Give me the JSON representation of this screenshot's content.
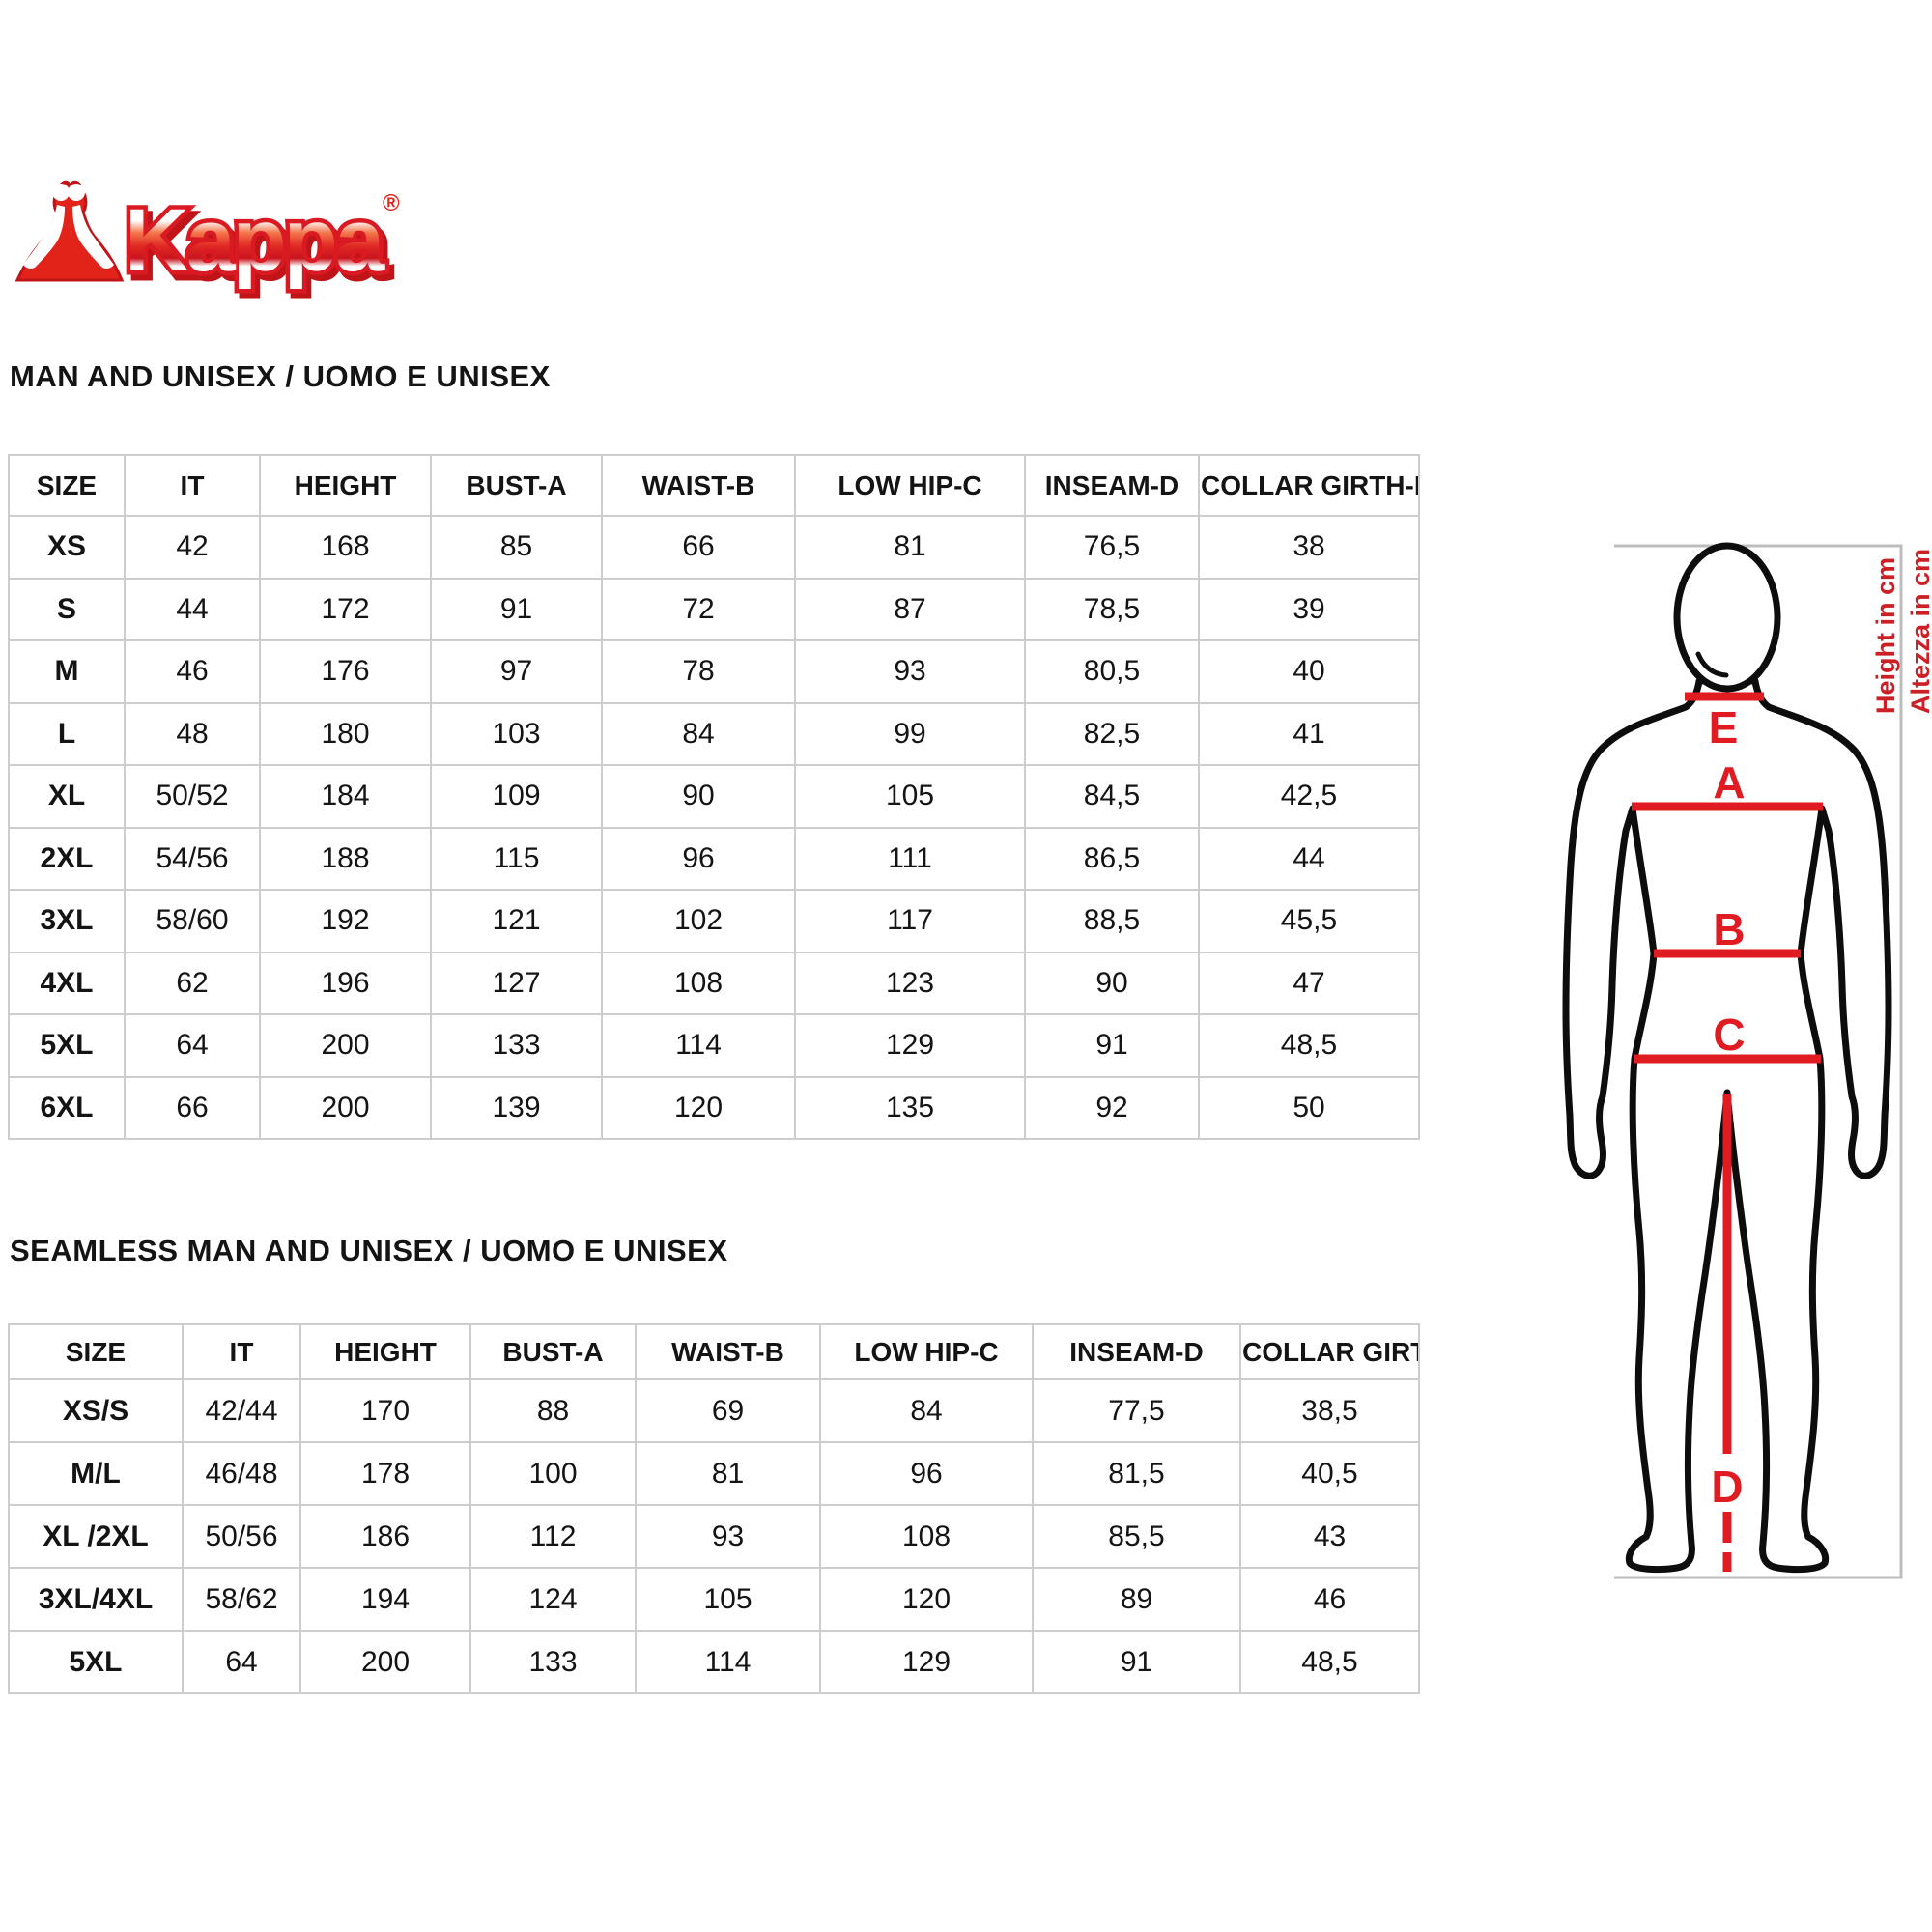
{
  "logo": {
    "brand": "Kappa",
    "registered": "®"
  },
  "colors": {
    "brand_red": "#e2231a",
    "line_red": "#e11b22",
    "note_red": "#cc1f26",
    "grid_gray": "#cdcdcd",
    "border_gray": "#bdbdbd",
    "text_black": "#141414"
  },
  "table1": {
    "title": "MAN AND UNISEX / UOMO E UNISEX",
    "columns": [
      "SIZE",
      "IT",
      "HEIGHT",
      "BUST-A",
      "WAIST-B",
      "LOW HIP-C",
      "INSEAM-D",
      "COLLAR GIRTH-E"
    ],
    "rows": [
      [
        "XS",
        "42",
        "168",
        "85",
        "66",
        "81",
        "76,5",
        "38"
      ],
      [
        "S",
        "44",
        "172",
        "91",
        "72",
        "87",
        "78,5",
        "39"
      ],
      [
        "M",
        "46",
        "176",
        "97",
        "78",
        "93",
        "80,5",
        "40"
      ],
      [
        "L",
        "48",
        "180",
        "103",
        "84",
        "99",
        "82,5",
        "41"
      ],
      [
        "XL",
        "50/52",
        "184",
        "109",
        "90",
        "105",
        "84,5",
        "42,5"
      ],
      [
        "2XL",
        "54/56",
        "188",
        "115",
        "96",
        "111",
        "86,5",
        "44"
      ],
      [
        "3XL",
        "58/60",
        "192",
        "121",
        "102",
        "117",
        "88,5",
        "45,5"
      ],
      [
        "4XL",
        "62",
        "196",
        "127",
        "108",
        "123",
        "90",
        "47"
      ],
      [
        "5XL",
        "64",
        "200",
        "133",
        "114",
        "129",
        "91",
        "48,5"
      ],
      [
        "6XL",
        "66",
        "200",
        "139",
        "120",
        "135",
        "92",
        "50"
      ]
    ]
  },
  "table2": {
    "title": "SEAMLESS MAN AND UNISEX / UOMO E UNISEX",
    "columns": [
      "SIZE",
      "IT",
      "HEIGHT",
      "BUST-A",
      "WAIST-B",
      "LOW HIP-C",
      "INSEAM-D",
      "COLLAR GIRTH-E"
    ],
    "rows": [
      [
        "XS/S",
        "42/44",
        "170",
        "88",
        "69",
        "84",
        "77,5",
        "38,5"
      ],
      [
        "M/L",
        "46/48",
        "178",
        "100",
        "81",
        "96",
        "81,5",
        "40,5"
      ],
      [
        "XL /2XL",
        "50/56",
        "186",
        "112",
        "93",
        "108",
        "85,5",
        "43"
      ],
      [
        "3XL/4XL",
        "58/62",
        "194",
        "124",
        "105",
        "120",
        "89",
        "46"
      ],
      [
        "5XL",
        "64",
        "200",
        "133",
        "114",
        "129",
        "91",
        "48,5"
      ]
    ]
  },
  "figure": {
    "labels": {
      "collar": "E",
      "bust": "A",
      "waist": "B",
      "low_hip": "C",
      "inseam": "D"
    },
    "height_note_en": "Height in cm",
    "height_note_it": "Altezza in cm"
  }
}
